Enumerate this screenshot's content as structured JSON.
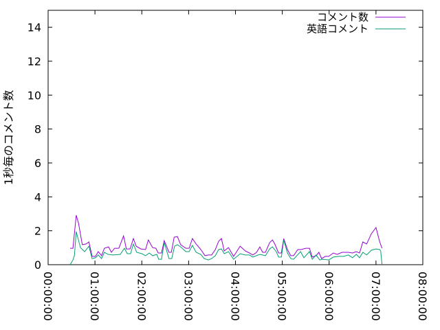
{
  "chart_data": {
    "type": "line",
    "title": "",
    "xlabel": "",
    "ylabel": "1秒毎のコメント数",
    "xlim_hours": [
      0,
      8
    ],
    "ylim": [
      0,
      15
    ],
    "x_ticks": [
      "00:00:00",
      "01:00:00",
      "02:00:00",
      "03:00:00",
      "04:00:00",
      "05:00:00",
      "06:00:00",
      "07:00:00",
      "08:00:00"
    ],
    "y_ticks": [
      "0",
      "2",
      "4",
      "6",
      "8",
      "10",
      "12",
      "14"
    ],
    "grid": false,
    "legend_position": "top-right",
    "series": [
      {
        "name": "コメント数",
        "color": "#9400d3",
        "x_hours": [
          0.47,
          0.53,
          0.6,
          0.65,
          0.73,
          0.81,
          0.87,
          0.94,
          1.01,
          1.07,
          1.14,
          1.2,
          1.29,
          1.35,
          1.42,
          1.51,
          1.61,
          1.67,
          1.75,
          1.82,
          1.88,
          1.98,
          2.08,
          2.14,
          2.23,
          2.3,
          2.35,
          2.42,
          2.48,
          2.58,
          2.63,
          2.69,
          2.76,
          2.83,
          2.94,
          3.01,
          3.08,
          3.16,
          3.26,
          3.35,
          3.42,
          3.49,
          3.57,
          3.64,
          3.7,
          3.76,
          3.85,
          3.96,
          4.1,
          4.21,
          4.3,
          4.37,
          4.45,
          4.52,
          4.58,
          4.64,
          4.73,
          4.79,
          4.84,
          4.92,
          4.98,
          5.03,
          5.11,
          5.18,
          5.24,
          5.33,
          5.4,
          5.5,
          5.58,
          5.64,
          5.72,
          5.78,
          5.84,
          5.92,
          5.99,
          6.09,
          6.17,
          6.28,
          6.41,
          6.5,
          6.58,
          6.65,
          6.72,
          6.8,
          6.9,
          7.0,
          7.08,
          7.13
        ],
        "values": [
          0.97,
          0.97,
          2.92,
          2.43,
          1.18,
          1.22,
          1.34,
          0.49,
          0.49,
          0.77,
          0.53,
          0.97,
          1.05,
          0.73,
          0.97,
          0.97,
          1.7,
          0.93,
          0.93,
          1.54,
          1.09,
          0.93,
          0.89,
          1.46,
          1.01,
          0.97,
          0.69,
          0.69,
          1.42,
          0.73,
          0.73,
          1.62,
          1.66,
          1.18,
          0.97,
          0.97,
          1.54,
          1.22,
          0.89,
          0.53,
          0.57,
          0.57,
          0.89,
          1.38,
          1.54,
          0.81,
          1.01,
          0.49,
          1.09,
          0.81,
          0.69,
          0.57,
          0.73,
          1.05,
          0.73,
          0.73,
          1.3,
          1.46,
          1.22,
          0.69,
          0.69,
          1.54,
          0.89,
          0.53,
          0.53,
          0.89,
          0.89,
          0.97,
          0.97,
          0.45,
          0.53,
          0.73,
          0.36,
          0.49,
          0.49,
          0.69,
          0.61,
          0.73,
          0.73,
          0.69,
          0.77,
          0.69,
          1.34,
          1.22,
          1.82,
          2.19,
          1.34,
          0.97
        ]
      },
      {
        "name": "英語コメント",
        "color": "#009e73",
        "x_hours": [
          0.47,
          0.53,
          0.56,
          0.6,
          0.69,
          0.78,
          0.87,
          0.94,
          1.01,
          1.07,
          1.14,
          1.2,
          1.28,
          1.39,
          1.54,
          1.63,
          1.69,
          1.76,
          1.82,
          1.89,
          2.0,
          2.08,
          2.16,
          2.23,
          2.32,
          2.36,
          2.42,
          2.48,
          2.58,
          2.64,
          2.7,
          2.76,
          2.83,
          2.94,
          3.01,
          3.08,
          3.16,
          3.26,
          3.33,
          3.42,
          3.49,
          3.57,
          3.64,
          3.7,
          3.76,
          3.85,
          3.96,
          4.1,
          4.21,
          4.3,
          4.37,
          4.52,
          4.64,
          4.73,
          4.79,
          4.87,
          4.92,
          4.98,
          5.03,
          5.11,
          5.18,
          5.24,
          5.39,
          5.46,
          5.58,
          5.64,
          5.72,
          5.8,
          5.87,
          5.99,
          6.09,
          6.21,
          6.31,
          6.41,
          6.5,
          6.58,
          6.65,
          6.72,
          6.8,
          6.9,
          7.0,
          7.08,
          7.1,
          7.13
        ],
        "values": [
          0,
          0.28,
          0.53,
          1.95,
          1.01,
          0.77,
          1.09,
          0.36,
          0.41,
          0.57,
          0.36,
          0.73,
          0.61,
          0.57,
          0.61,
          0.97,
          0.65,
          0.65,
          1.22,
          0.73,
          0.65,
          0.53,
          0.69,
          0.53,
          0.61,
          0.32,
          0.32,
          1.3,
          0.36,
          0.36,
          1.09,
          1.18,
          1.05,
          0.77,
          0.77,
          1.14,
          0.73,
          0.61,
          0.36,
          0.28,
          0.36,
          0.53,
          0.89,
          0.93,
          0.65,
          0.77,
          0.32,
          0.65,
          0.57,
          0.57,
          0.45,
          0.61,
          0.53,
          0.93,
          1.05,
          0.77,
          0.45,
          0.45,
          1.46,
          0.69,
          0.36,
          0.32,
          0.77,
          0.41,
          0.77,
          0.32,
          0.57,
          0.28,
          0.32,
          0.28,
          0.45,
          0.49,
          0.49,
          0.57,
          0.41,
          0.61,
          0.41,
          0.73,
          0.57,
          0.85,
          0.93,
          0.89,
          0.81,
          0
        ]
      }
    ]
  }
}
